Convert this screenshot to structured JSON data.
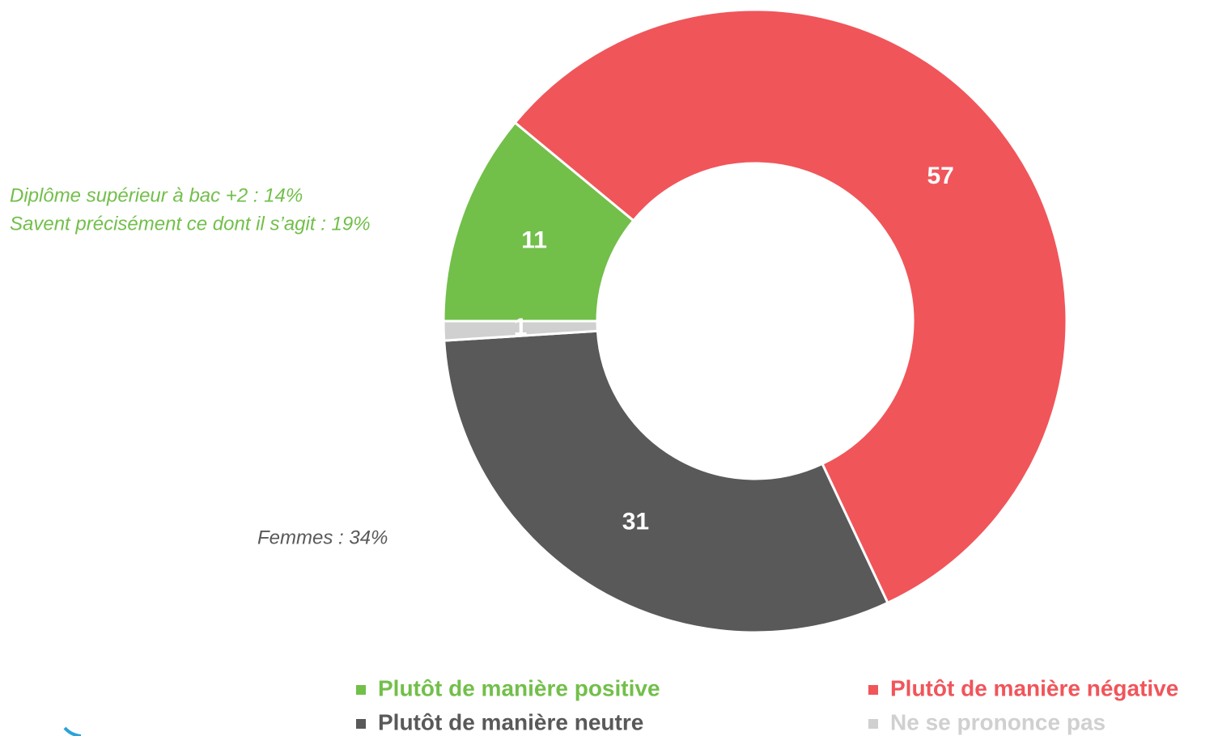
{
  "chart_data": {
    "type": "donut",
    "categories": [
      "Plutôt de manière positive",
      "Plutôt de manière négative",
      "Plutôt de manière neutre",
      "Ne se prononce pas"
    ],
    "values": [
      11,
      57,
      31,
      1
    ],
    "colors": [
      "#72bf4a",
      "#f0555a",
      "#595959",
      "#d0d0d0"
    ],
    "annotations": [
      {
        "text": "Diplôme supérieur à bac +2 : 14%",
        "color": "#72bf4a"
      },
      {
        "text": "Savent précisément ce dont il s’agit : 19%",
        "color": "#72bf4a"
      },
      {
        "text": "Femmes : 34%",
        "color": "#595959"
      }
    ],
    "legend": "bottom"
  }
}
